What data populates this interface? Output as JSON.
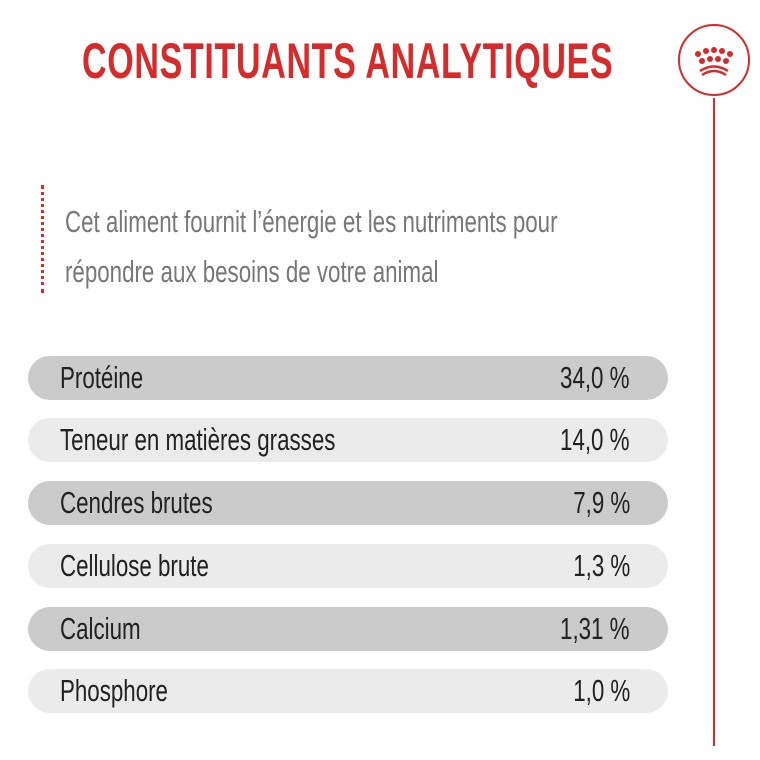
{
  "title": "CONSTITUANTS ANALYTIQUES",
  "logo": "royal-crown-icon",
  "intro": [
    "Cet aliment fournit l’énergie et les nutriments pour",
    "répondre aux besoins de votre animal"
  ],
  "colors": {
    "accent": "#d52b2b",
    "row_dark": "#cbcbcb",
    "row_light": "#ebebeb"
  },
  "rows": [
    {
      "label": "Protéine",
      "value": "34,0 %"
    },
    {
      "label": "Teneur en matières grasses",
      "value": "14,0 %"
    },
    {
      "label": "Cendres brutes",
      "value": "7,9 %"
    },
    {
      "label": "Cellulose brute",
      "value": "1,3 %"
    },
    {
      "label": "Calcium",
      "value": "1,31 %"
    },
    {
      "label": "Phosphore",
      "value": "1,0 %"
    }
  ]
}
